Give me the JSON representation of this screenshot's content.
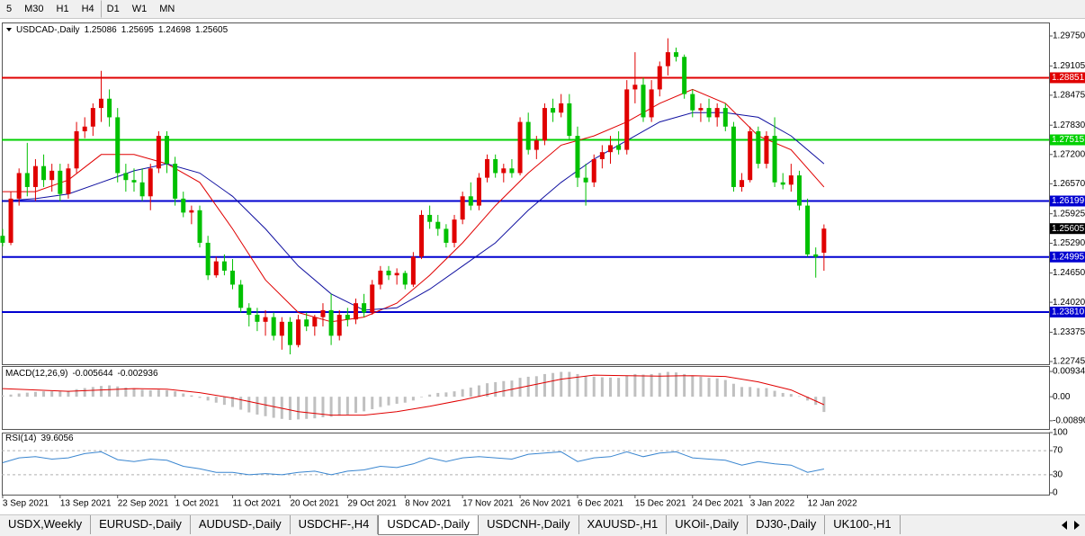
{
  "toolbar": {
    "timeframes": [
      "5",
      "M30",
      "H1",
      "H4",
      "D1",
      "W1",
      "MN"
    ]
  },
  "chart_data": [
    {
      "type": "candlestick",
      "title": "USDCAD-,Daily",
      "header_values": [
        1.25086,
        1.25695,
        1.24698,
        1.25605
      ],
      "xlim": [
        -0.1,
        127.4
      ],
      "ylim": [
        1.22687,
        1.3004
      ],
      "xticks": [
        {
          "value": 0,
          "label": "3 Sep 2021"
        },
        {
          "value": 7,
          "label": "13 Sep 2021"
        },
        {
          "value": 14,
          "label": "22 Sep 2021"
        },
        {
          "value": 21,
          "label": "1 Oct 2021"
        },
        {
          "value": 28,
          "label": "11 Oct 2021"
        },
        {
          "value": 35,
          "label": "20 Oct 2021"
        },
        {
          "value": 42,
          "label": "29 Oct 2021"
        },
        {
          "value": 49,
          "label": "8 Nov 2021"
        },
        {
          "value": 56,
          "label": "17 Nov 2021"
        },
        {
          "value": 63,
          "label": "26 Nov 2021"
        },
        {
          "value": 70,
          "label": "6 Dec 2021"
        },
        {
          "value": 77,
          "label": "15 Dec 2021"
        },
        {
          "value": 84,
          "label": "24 Dec 2021"
        },
        {
          "value": 91,
          "label": "3 Jan 2022"
        },
        {
          "value": 98,
          "label": "12 Jan 2022"
        }
      ],
      "yticks": [
        {
          "value": 1.2975,
          "label": "1.29750"
        },
        1.29105,
        1.28475,
        {
          "value": 1.2783,
          "label": "1.27830"
        },
        {
          "value": 1.272,
          "label": "1.27200"
        },
        {
          "value": 1.2657,
          "label": "1.26570"
        },
        1.25925,
        {
          "value": 1.2529,
          "label": "1.25290"
        },
        {
          "value": 1.2465,
          "label": "1.24650"
        },
        {
          "value": 1.2402,
          "label": "1.24020"
        },
        1.23375,
        1.22745
      ],
      "up_color": "#e00000",
      "down_color": "#00c000",
      "candles": [
        [
          1.2545,
          1.256,
          1.2522,
          1.253
        ],
        [
          1.253,
          1.264,
          1.2525,
          1.2625
        ],
        [
          1.2625,
          1.269,
          1.261,
          1.268
        ],
        [
          1.268,
          1.2745,
          1.263,
          1.265
        ],
        [
          1.265,
          1.271,
          1.262,
          1.2695
        ],
        [
          1.2695,
          1.272,
          1.265,
          1.2665
        ],
        [
          1.2665,
          1.27,
          1.264,
          1.2685
        ],
        [
          1.2685,
          1.27,
          1.262,
          1.2635
        ],
        [
          1.2635,
          1.27,
          1.2625,
          1.269
        ],
        [
          1.269,
          1.279,
          1.268,
          1.277
        ],
        [
          1.277,
          1.28,
          1.2755,
          1.278
        ],
        [
          1.278,
          1.283,
          1.276,
          1.282
        ],
        [
          1.282,
          1.29,
          1.279,
          1.284
        ],
        [
          1.284,
          1.286,
          1.278,
          1.28
        ],
        [
          1.28,
          1.282,
          1.266,
          1.268
        ],
        [
          1.268,
          1.27,
          1.264,
          1.2665
        ],
        [
          1.2665,
          1.269,
          1.264,
          1.266
        ],
        [
          1.266,
          1.269,
          1.262,
          1.263
        ],
        [
          1.263,
          1.27,
          1.26,
          1.269
        ],
        [
          1.269,
          1.277,
          1.268,
          1.276
        ],
        [
          1.276,
          1.277,
          1.268,
          1.27
        ],
        [
          1.27,
          1.2715,
          1.261,
          1.2625
        ],
        [
          1.2625,
          1.264,
          1.2585,
          1.2595
        ],
        [
          1.2595,
          1.261,
          1.257,
          1.26
        ],
        [
          1.26,
          1.261,
          1.252,
          1.253
        ],
        [
          1.253,
          1.2545,
          1.245,
          1.246
        ],
        [
          1.246,
          1.25,
          1.2455,
          1.249
        ],
        [
          1.249,
          1.2505,
          1.246,
          1.247
        ],
        [
          1.247,
          1.2495,
          1.243,
          1.244
        ],
        [
          1.244,
          1.245,
          1.238,
          1.239
        ],
        [
          1.239,
          1.24,
          1.235,
          1.2375
        ],
        [
          1.2375,
          1.239,
          1.234,
          1.236
        ],
        [
          1.236,
          1.2385,
          1.233,
          1.237
        ],
        [
          1.237,
          1.238,
          1.232,
          1.233
        ],
        [
          1.233,
          1.237,
          1.23,
          1.236
        ],
        [
          1.236,
          1.237,
          1.229,
          1.231
        ],
        [
          1.231,
          1.2375,
          1.2305,
          1.2365
        ],
        [
          1.2365,
          1.238,
          1.234,
          1.235
        ],
        [
          1.235,
          1.2375,
          1.233,
          1.237
        ],
        [
          1.237,
          1.24,
          1.235,
          1.2385
        ],
        [
          1.2385,
          1.242,
          1.231,
          1.233
        ],
        [
          1.233,
          1.2385,
          1.232,
          1.2375
        ],
        [
          1.2375,
          1.239,
          1.235,
          1.2365
        ],
        [
          1.2365,
          1.241,
          1.2355,
          1.24
        ],
        [
          1.24,
          1.242,
          1.237,
          1.238
        ],
        [
          1.238,
          1.245,
          1.2375,
          1.244
        ],
        [
          1.244,
          1.248,
          1.243,
          1.247
        ],
        [
          1.247,
          1.248,
          1.245,
          1.246
        ],
        [
          1.246,
          1.2475,
          1.244,
          1.2465
        ],
        [
          1.2465,
          1.247,
          1.243,
          1.244
        ],
        [
          1.244,
          1.251,
          1.2435,
          1.25
        ],
        [
          1.25,
          1.26,
          1.2495,
          1.259
        ],
        [
          1.259,
          1.261,
          1.256,
          1.2575
        ],
        [
          1.2575,
          1.259,
          1.2545,
          1.256
        ],
        [
          1.256,
          1.257,
          1.252,
          1.253
        ],
        [
          1.253,
          1.259,
          1.252,
          1.258
        ],
        [
          1.258,
          1.264,
          1.257,
          1.263
        ],
        [
          1.263,
          1.266,
          1.26,
          1.261
        ],
        [
          1.261,
          1.268,
          1.26,
          1.267
        ],
        [
          1.267,
          1.272,
          1.266,
          1.271
        ],
        [
          1.271,
          1.272,
          1.267,
          1.268
        ],
        [
          1.268,
          1.27,
          1.266,
          1.269
        ],
        [
          1.269,
          1.271,
          1.267,
          1.268
        ],
        [
          1.268,
          1.28,
          1.2675,
          1.279
        ],
        [
          1.279,
          1.281,
          1.272,
          1.273
        ],
        [
          1.273,
          1.276,
          1.271,
          1.275
        ],
        [
          1.275,
          1.283,
          1.274,
          1.282
        ],
        [
          1.282,
          1.284,
          1.279,
          1.281
        ],
        [
          1.281,
          1.285,
          1.28,
          1.283
        ],
        [
          1.283,
          1.285,
          1.275,
          1.276
        ],
        [
          1.276,
          1.278,
          1.265,
          1.267
        ],
        [
          1.267,
          1.27,
          1.261,
          1.266
        ],
        [
          1.266,
          1.272,
          1.265,
          1.271
        ],
        [
          1.271,
          1.274,
          1.269,
          1.2725
        ],
        [
          1.2725,
          1.276,
          1.27,
          1.274
        ],
        [
          1.274,
          1.277,
          1.272,
          1.273
        ],
        [
          1.273,
          1.288,
          1.272,
          1.286
        ],
        [
          1.286,
          1.294,
          1.283,
          1.287
        ],
        [
          1.287,
          1.2885,
          1.279,
          1.28
        ],
        [
          1.28,
          1.288,
          1.279,
          1.286
        ],
        [
          1.286,
          1.292,
          1.2845,
          1.291
        ],
        [
          1.291,
          1.297,
          1.289,
          1.294
        ],
        [
          1.294,
          1.295,
          1.292,
          1.293
        ],
        [
          1.293,
          1.2935,
          1.284,
          1.285
        ],
        [
          1.285,
          1.286,
          1.28,
          1.2815
        ],
        [
          1.2815,
          1.283,
          1.279,
          1.282
        ],
        [
          1.282,
          1.284,
          1.279,
          1.28
        ],
        [
          1.28,
          1.283,
          1.278,
          1.282
        ],
        [
          1.282,
          1.283,
          1.277,
          1.278
        ],
        [
          1.278,
          1.279,
          1.264,
          1.265
        ],
        [
          1.265,
          1.268,
          1.264,
          1.2665
        ],
        [
          1.2665,
          1.278,
          1.266,
          1.277
        ],
        [
          1.277,
          1.278,
          1.269,
          1.27
        ],
        [
          1.27,
          1.277,
          1.269,
          1.276
        ],
        [
          1.276,
          1.28,
          1.265,
          1.266
        ],
        [
          1.266,
          1.268,
          1.2645,
          1.2655
        ],
        [
          1.2655,
          1.27,
          1.264,
          1.2675
        ],
        [
          1.2675,
          1.2685,
          1.26,
          1.261
        ],
        [
          1.261,
          1.2625,
          1.25,
          1.2505
        ],
        [
          1.2505,
          1.252,
          1.2455,
          1.25
        ],
        [
          1.25086,
          1.25695,
          1.24698,
          1.25605
        ]
      ],
      "moving_averages": [
        {
          "color": "#e00000",
          "x": [
            0,
            4,
            8,
            12,
            16,
            20,
            24,
            28,
            32,
            36,
            40,
            44,
            48,
            52,
            56,
            60,
            64,
            68,
            72,
            76,
            80,
            84,
            88,
            92,
            96,
            100
          ],
          "values": [
            1.264,
            1.264,
            1.2665,
            1.272,
            1.272,
            1.27,
            1.266,
            1.256,
            1.245,
            1.238,
            1.236,
            1.237,
            1.24,
            1.246,
            1.253,
            1.261,
            1.268,
            1.274,
            1.276,
            1.279,
            1.283,
            1.286,
            1.283,
            1.276,
            1.273,
            1.265
          ]
        },
        {
          "color": "#1010a0",
          "x": [
            0,
            4,
            8,
            12,
            16,
            20,
            24,
            28,
            32,
            36,
            40,
            44,
            48,
            52,
            56,
            60,
            64,
            68,
            72,
            76,
            80,
            84,
            88,
            92,
            96,
            100
          ],
          "values": [
            1.262,
            1.2625,
            1.2635,
            1.266,
            1.2685,
            1.27,
            1.268,
            1.263,
            1.256,
            1.248,
            1.242,
            1.2385,
            1.239,
            1.243,
            1.248,
            1.253,
            1.26,
            1.266,
            1.271,
            1.275,
            1.279,
            1.281,
            1.281,
            1.28,
            1.276,
            1.27
          ]
        }
      ],
      "levels": [
        {
          "value": 1.28851,
          "color": "#e00000"
        },
        {
          "value": 1.27515,
          "color": "#00d000"
        },
        {
          "value": 1.26199,
          "color": "#0000d0"
        },
        {
          "value": 1.24995,
          "color": "#0000d0"
        },
        {
          "value": 1.2381,
          "label": "1.23810",
          "color": "#0000d0"
        }
      ],
      "last_price": 1.25605
    },
    {
      "type": "macd",
      "title": "MACD(12,26,9)",
      "header_values": [
        -0.005644,
        -0.002936
      ],
      "xlim": [
        -0.1,
        127.4
      ],
      "ylim": [
        -0.01194,
        0.01137
      ],
      "yticks": [
        0.009345,
        {
          "value": 0,
          "label": "0.00"
        },
        {
          "value": -0.0089,
          "label": "-0.00890"
        }
      ],
      "histogram_color": "#c0c0c0",
      "signal_color": "#e00000",
      "histogram": [
        0.0005,
        0.0008,
        0.0012,
        0.0015,
        0.0018,
        0.002,
        0.002,
        0.002,
        0.0022,
        0.0028,
        0.0032,
        0.0036,
        0.004,
        0.0042,
        0.0038,
        0.0034,
        0.003,
        0.0026,
        0.0024,
        0.0026,
        0.0024,
        0.002,
        0.0012,
        0.0005,
        -0.0004,
        -0.0014,
        -0.0022,
        -0.003,
        -0.0038,
        -0.0048,
        -0.0058,
        -0.0066,
        -0.0072,
        -0.0078,
        -0.0082,
        -0.0086,
        -0.0084,
        -0.0082,
        -0.008,
        -0.0076,
        -0.0074,
        -0.007,
        -0.0066,
        -0.006,
        -0.0054,
        -0.0046,
        -0.0038,
        -0.0032,
        -0.0026,
        -0.0022,
        -0.0014,
        -0.0002,
        0.0008,
        0.0014,
        0.0016,
        0.002,
        0.0028,
        0.0034,
        0.0042,
        0.005,
        0.0054,
        0.0058,
        0.006,
        0.007,
        0.0074,
        0.0076,
        0.0084,
        0.0088,
        0.0092,
        0.0092,
        0.0084,
        0.0076,
        0.0074,
        0.0072,
        0.0071,
        0.007,
        0.0078,
        0.0084,
        0.0082,
        0.0084,
        0.0088,
        0.0092,
        0.009,
        0.0084,
        0.0078,
        0.0074,
        0.007,
        0.0068,
        0.0062,
        0.0048,
        0.0036,
        0.0036,
        0.0032,
        0.0032,
        0.0022,
        0.0014,
        0.001,
        0.0002,
        -0.0014,
        -0.003,
        -0.005644
      ],
      "signal": {
        "x": [
          0,
          4,
          8,
          12,
          16,
          20,
          24,
          28,
          32,
          36,
          40,
          44,
          48,
          52,
          56,
          60,
          64,
          68,
          72,
          76,
          80,
          84,
          88,
          92,
          96,
          100
        ],
        "values": [
          0.003,
          0.0025,
          0.002,
          0.0025,
          0.003,
          0.0028,
          0.0015,
          -0.0005,
          -0.003,
          -0.0055,
          -0.0068,
          -0.0068,
          -0.0055,
          -0.0035,
          -0.0012,
          0.0015,
          0.004,
          0.0065,
          0.008,
          0.0078,
          0.0076,
          0.0078,
          0.0075,
          0.0055,
          0.0025,
          -0.002936
        ]
      }
    },
    {
      "type": "rsi",
      "title": "RSI(14)",
      "header_values": [
        39.6056
      ],
      "xlim": [
        -0.1,
        127.4
      ],
      "ylim": [
        -3,
        100
      ],
      "yticks": [
        100,
        70,
        30,
        0
      ],
      "levels": [
        70,
        30
      ],
      "color": "#3a86d0",
      "x": [
        0,
        2,
        4,
        6,
        8,
        10,
        12,
        14,
        16,
        18,
        20,
        22,
        24,
        26,
        28,
        30,
        32,
        34,
        36,
        38,
        40,
        42,
        44,
        46,
        48,
        50,
        52,
        54,
        56,
        58,
        60,
        62,
        64,
        66,
        68,
        70,
        72,
        74,
        76,
        78,
        80,
        82,
        84,
        86,
        88,
        90,
        92,
        94,
        96,
        98,
        100
      ],
      "values": [
        50,
        58,
        60,
        56,
        58,
        65,
        68,
        55,
        52,
        56,
        54,
        44,
        40,
        34,
        34,
        30,
        32,
        30,
        34,
        36,
        30,
        36,
        38,
        44,
        42,
        48,
        58,
        52,
        58,
        60,
        58,
        56,
        64,
        66,
        68,
        52,
        58,
        60,
        68,
        60,
        66,
        68,
        58,
        56,
        54,
        46,
        52,
        48,
        46,
        34,
        39.6056
      ]
    }
  ],
  "tabs": [
    {
      "label": "USDX,Weekly"
    },
    {
      "label": "EURUSD-,Daily"
    },
    {
      "label": "AUDUSD-,Daily"
    },
    {
      "label": "USDCHF-,H4"
    },
    {
      "label": "USDCAD-,Daily",
      "active": true
    },
    {
      "label": "USDCNH-,Daily"
    },
    {
      "label": "XAUUSD-,H1"
    },
    {
      "label": "UKOil-,Daily"
    },
    {
      "label": "DJ30-,Daily"
    },
    {
      "label": "UK100-,H1"
    }
  ]
}
